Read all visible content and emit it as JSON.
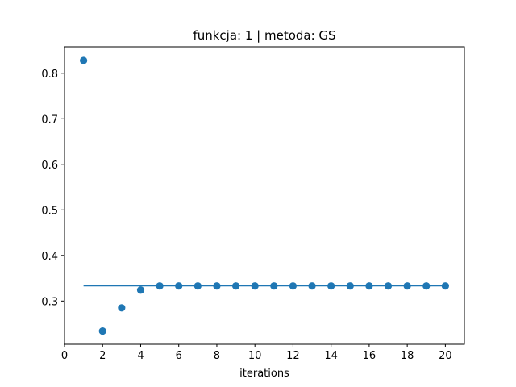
{
  "chart_data": {
    "type": "scatter",
    "title": "funkcja: 1 | metoda: GS",
    "xlabel": "iterations",
    "ylabel": "",
    "xlim": [
      0,
      21
    ],
    "ylim": [
      0.205,
      0.858
    ],
    "xticks": [
      0,
      2,
      4,
      6,
      8,
      10,
      12,
      14,
      16,
      18,
      20
    ],
    "yticks": [
      0.3,
      0.4,
      0.5,
      0.6,
      0.7,
      0.8
    ],
    "ytick_labels": [
      "0.3",
      "0.4",
      "0.5",
      "0.6",
      "0.7",
      "0.8"
    ],
    "grid": false,
    "color": "#1f77b4",
    "series": [
      {
        "kind": "scatter",
        "x": [
          1,
          2,
          3,
          4,
          5,
          6,
          7,
          8,
          9,
          10,
          11,
          12,
          13,
          14,
          15,
          16,
          17,
          18,
          19,
          20
        ],
        "y": [
          0.828,
          0.234,
          0.285,
          0.324,
          0.333,
          0.333,
          0.333,
          0.333,
          0.333,
          0.333,
          0.333,
          0.333,
          0.333,
          0.333,
          0.333,
          0.333,
          0.333,
          0.333,
          0.333,
          0.333
        ]
      },
      {
        "kind": "line",
        "x": [
          1,
          20
        ],
        "y": [
          0.3333,
          0.3333
        ]
      }
    ]
  }
}
